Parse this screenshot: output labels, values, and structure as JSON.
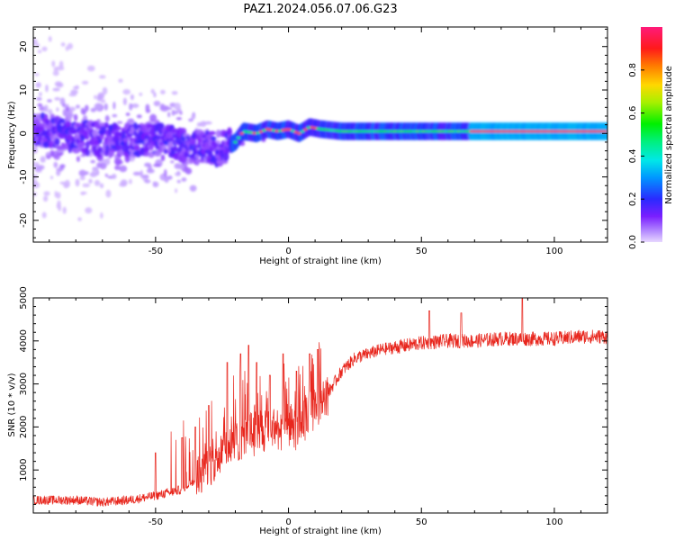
{
  "figure": {
    "title": "PAZ1.2024.056.07.06.G23"
  },
  "chart_data": [
    {
      "type": "heatmap",
      "xlabel": "Height of straight line (km)",
      "ylabel": "Frequency (Hz)",
      "xlim": [
        -96,
        120
      ],
      "ylim": [
        -25,
        24.5
      ],
      "xticks": [
        -50,
        0,
        50,
        100
      ],
      "yticks": [
        -20,
        -10,
        0,
        10,
        20
      ],
      "colorbar": {
        "label": "Normalized spectral amplitude",
        "range": [
          0,
          1
        ],
        "ticks": [
          0.0,
          0.2,
          0.4,
          0.6,
          0.8
        ]
      },
      "ridge": {
        "description_points": [
          [
            -96,
            1.0
          ],
          [
            -85,
            0.0
          ],
          [
            -75,
            -1.0
          ],
          [
            -65,
            -1.5
          ],
          [
            -55,
            -1.5
          ],
          [
            -45,
            -1.5
          ],
          [
            -40,
            -2.5
          ],
          [
            -35,
            -3.0
          ],
          [
            -30,
            -3.2
          ],
          [
            -25,
            -3.5
          ],
          [
            -20,
            -2.0
          ],
          [
            -17,
            0.5
          ],
          [
            -12,
            0.0
          ],
          [
            -8,
            1.0
          ],
          [
            -4,
            0.5
          ],
          [
            0,
            1.0
          ],
          [
            4,
            0.0
          ],
          [
            8,
            1.5
          ],
          [
            12,
            1.0
          ],
          [
            20,
            0.5
          ],
          [
            40,
            0.5
          ],
          [
            60,
            0.5
          ],
          [
            80,
            0.5
          ],
          [
            100,
            0.5
          ],
          [
            120,
            0.5
          ]
        ]
      }
    },
    {
      "type": "line",
      "xlabel": "Height of straight line (km)",
      "ylabel": "SNR (10 * v/v)",
      "xlim": [
        -96,
        120
      ],
      "ylim": [
        0,
        5000
      ],
      "xticks": [
        -50,
        0,
        50,
        100
      ],
      "yticks": [
        1000,
        2000,
        3000,
        4000,
        5000
      ],
      "color": "#e8261d",
      "series": [
        {
          "trend": [
            [
              -96,
              300
            ],
            [
              -80,
              300
            ],
            [
              -70,
              250
            ],
            [
              -60,
              300
            ],
            [
              -50,
              400
            ],
            [
              -40,
              550
            ],
            [
              -35,
              800
            ],
            [
              -30,
              1100
            ],
            [
              -25,
              1400
            ],
            [
              -20,
              1650
            ],
            [
              -15,
              1800
            ],
            [
              -10,
              1900
            ],
            [
              -5,
              1950
            ],
            [
              0,
              2000
            ],
            [
              5,
              2100
            ],
            [
              10,
              2400
            ],
            [
              15,
              2800
            ],
            [
              20,
              3300
            ],
            [
              25,
              3600
            ],
            [
              30,
              3700
            ],
            [
              35,
              3800
            ],
            [
              40,
              3850
            ],
            [
              50,
              3950
            ],
            [
              60,
              4000
            ],
            [
              70,
              4000
            ],
            [
              80,
              4050
            ],
            [
              90,
              4050
            ],
            [
              100,
              4050
            ],
            [
              110,
              4100
            ],
            [
              120,
              4100
            ]
          ],
          "spikes": [
            [
              -50,
              1400
            ],
            [
              -40,
              1750
            ],
            [
              -35,
              2000
            ],
            [
              -30,
              2500
            ],
            [
              -23,
              3500
            ],
            [
              -18,
              3700
            ],
            [
              -15,
              3900
            ],
            [
              -12,
              3500
            ],
            [
              -7,
              3200
            ],
            [
              -2,
              3700
            ],
            [
              3,
              3300
            ],
            [
              8,
              3700
            ],
            [
              11,
              3800
            ],
            [
              53,
              4700
            ],
            [
              65,
              4650
            ],
            [
              88,
              5000
            ]
          ]
        }
      ]
    }
  ]
}
